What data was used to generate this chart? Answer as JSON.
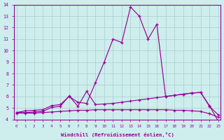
{
  "xlabel": "Windchill (Refroidissement éolien,°C)",
  "x": [
    0,
    1,
    2,
    3,
    4,
    5,
    6,
    7,
    8,
    9,
    10,
    11,
    12,
    13,
    14,
    15,
    16,
    17,
    18,
    19,
    20,
    21,
    22,
    23
  ],
  "line_top": [
    4.6,
    4.75,
    4.8,
    4.85,
    5.2,
    5.3,
    6.0,
    5.5,
    5.4,
    7.2,
    9.0,
    11.0,
    10.7,
    13.8,
    13.0,
    11.0,
    12.3,
    6.0,
    6.1,
    6.2,
    6.3,
    6.35,
    5.2,
    3.85
  ],
  "line_mid": [
    4.6,
    4.6,
    4.65,
    4.7,
    5.05,
    5.15,
    6.05,
    5.15,
    6.45,
    5.3,
    5.35,
    5.4,
    5.5,
    5.6,
    5.7,
    5.8,
    5.9,
    6.0,
    6.1,
    6.2,
    6.3,
    6.35,
    5.15,
    4.4
  ],
  "line_bot": [
    4.55,
    4.55,
    4.55,
    4.6,
    4.65,
    4.7,
    4.75,
    4.8,
    4.8,
    4.85,
    4.85,
    4.85,
    4.85,
    4.85,
    4.85,
    4.85,
    4.85,
    4.85,
    4.8,
    4.8,
    4.75,
    4.7,
    4.5,
    4.2
  ],
  "line_color": "#990099",
  "bg_color": "#cdeeed",
  "grid_color": "#aacccc",
  "ylim": [
    4,
    14
  ],
  "yticks": [
    4,
    5,
    6,
    7,
    8,
    9,
    10,
    11,
    12,
    13,
    14
  ],
  "xticks": [
    0,
    1,
    2,
    3,
    4,
    5,
    6,
    7,
    8,
    9,
    10,
    11,
    12,
    13,
    14,
    15,
    16,
    17,
    18,
    19,
    20,
    21,
    22,
    23
  ]
}
